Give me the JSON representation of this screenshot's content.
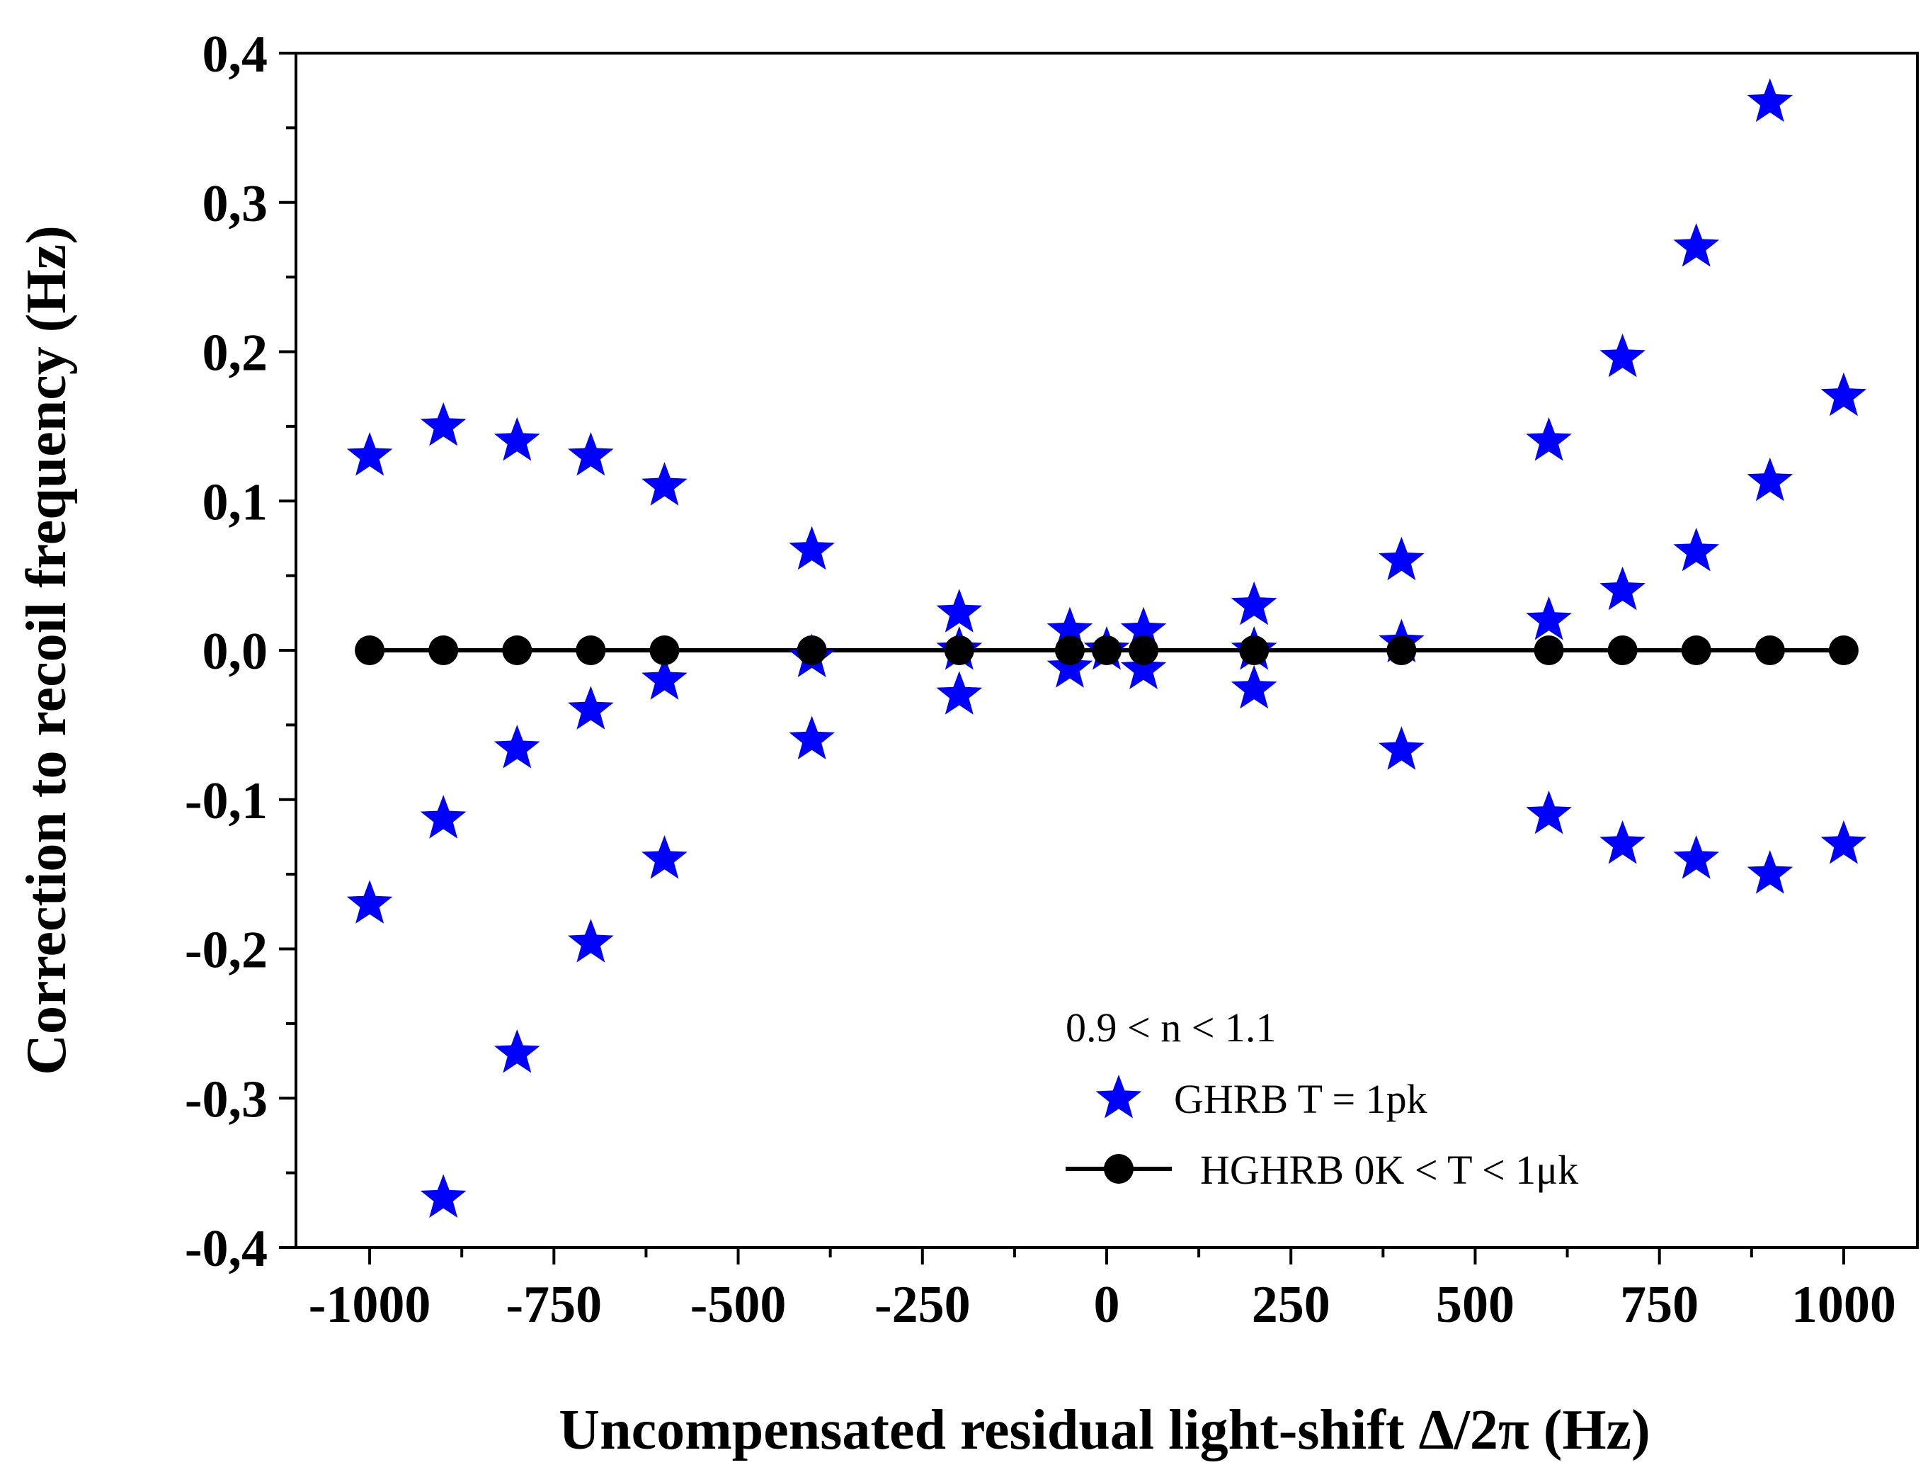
{
  "chart_data": {
    "type": "scatter",
    "xlabel": "Uncompensated residual light-shift Δ/2π (Hz)",
    "ylabel": "Correction to recoil frequency (Hz)",
    "xlim": [
      -1100,
      1100
    ],
    "ylim": [
      -0.4,
      0.4
    ],
    "x_ticks": [
      -1000,
      -750,
      -500,
      -250,
      0,
      250,
      500,
      750,
      1000
    ],
    "x_tick_labels": [
      "-1000",
      "-750",
      "-500",
      "-250",
      "0",
      "250",
      "500",
      "750",
      "1000"
    ],
    "y_ticks": [
      -0.4,
      -0.3,
      -0.2,
      -0.1,
      0.0,
      0.1,
      0.2,
      0.3,
      0.4
    ],
    "y_tick_labels": [
      "-0,4",
      "-0,3",
      "-0,2",
      "-0,1",
      "0,0",
      "0,1",
      "0,2",
      "0,3",
      "0,4"
    ],
    "grid": false,
    "legend_title": "0.9 < n < 1.1",
    "legend_position": "bottom-right",
    "series": [
      {
        "name": "GHRB  T = 1pk",
        "marker": "star",
        "color": "#0000ff",
        "points": [
          {
            "x": -1000,
            "y": 0.13
          },
          {
            "x": -1000,
            "y": -0.17
          },
          {
            "x": -900,
            "y": 0.15
          },
          {
            "x": -900,
            "y": -0.113
          },
          {
            "x": -900,
            "y": -0.367
          },
          {
            "x": -800,
            "y": 0.14
          },
          {
            "x": -800,
            "y": -0.066
          },
          {
            "x": -800,
            "y": -0.27
          },
          {
            "x": -700,
            "y": 0.13
          },
          {
            "x": -700,
            "y": -0.04
          },
          {
            "x": -700,
            "y": -0.196
          },
          {
            "x": -600,
            "y": 0.11
          },
          {
            "x": -600,
            "y": -0.02
          },
          {
            "x": -600,
            "y": -0.14
          },
          {
            "x": -400,
            "y": 0.067
          },
          {
            "x": -400,
            "y": -0.005
          },
          {
            "x": -400,
            "y": -0.06
          },
          {
            "x": -200,
            "y": 0.025
          },
          {
            "x": -200,
            "y": 0.0
          },
          {
            "x": -200,
            "y": -0.03
          },
          {
            "x": -50,
            "y": 0.013
          },
          {
            "x": -50,
            "y": -0.012
          },
          {
            "x": 0,
            "y": 0.0
          },
          {
            "x": 50,
            "y": 0.013
          },
          {
            "x": 50,
            "y": -0.013
          },
          {
            "x": 200,
            "y": 0.03
          },
          {
            "x": 200,
            "y": 0.0
          },
          {
            "x": 200,
            "y": -0.026
          },
          {
            "x": 400,
            "y": 0.06
          },
          {
            "x": 400,
            "y": 0.005
          },
          {
            "x": 400,
            "y": -0.067
          },
          {
            "x": 600,
            "y": 0.14
          },
          {
            "x": 600,
            "y": 0.02
          },
          {
            "x": 600,
            "y": -0.11
          },
          {
            "x": 700,
            "y": 0.196
          },
          {
            "x": 700,
            "y": 0.04
          },
          {
            "x": 700,
            "y": -0.13
          },
          {
            "x": 800,
            "y": 0.27
          },
          {
            "x": 800,
            "y": 0.066
          },
          {
            "x": 800,
            "y": -0.14
          },
          {
            "x": 900,
            "y": 0.367
          },
          {
            "x": 900,
            "y": 0.113
          },
          {
            "x": 900,
            "y": -0.15
          },
          {
            "x": 1000,
            "y": 0.17
          },
          {
            "x": 1000,
            "y": -0.13
          }
        ]
      },
      {
        "name": "HGHRB  0K < T < 1μk",
        "marker": "circle-line",
        "color": "#000000",
        "points": [
          {
            "x": -1000,
            "y": 0
          },
          {
            "x": -900,
            "y": 0
          },
          {
            "x": -800,
            "y": 0
          },
          {
            "x": -700,
            "y": 0
          },
          {
            "x": -600,
            "y": 0
          },
          {
            "x": -400,
            "y": 0
          },
          {
            "x": -200,
            "y": 0
          },
          {
            "x": -50,
            "y": 0
          },
          {
            "x": 0,
            "y": 0
          },
          {
            "x": 50,
            "y": 0
          },
          {
            "x": 200,
            "y": 0
          },
          {
            "x": 400,
            "y": 0
          },
          {
            "x": 600,
            "y": 0
          },
          {
            "x": 700,
            "y": 0
          },
          {
            "x": 800,
            "y": 0
          },
          {
            "x": 900,
            "y": 0
          },
          {
            "x": 1000,
            "y": 0
          }
        ]
      }
    ]
  }
}
